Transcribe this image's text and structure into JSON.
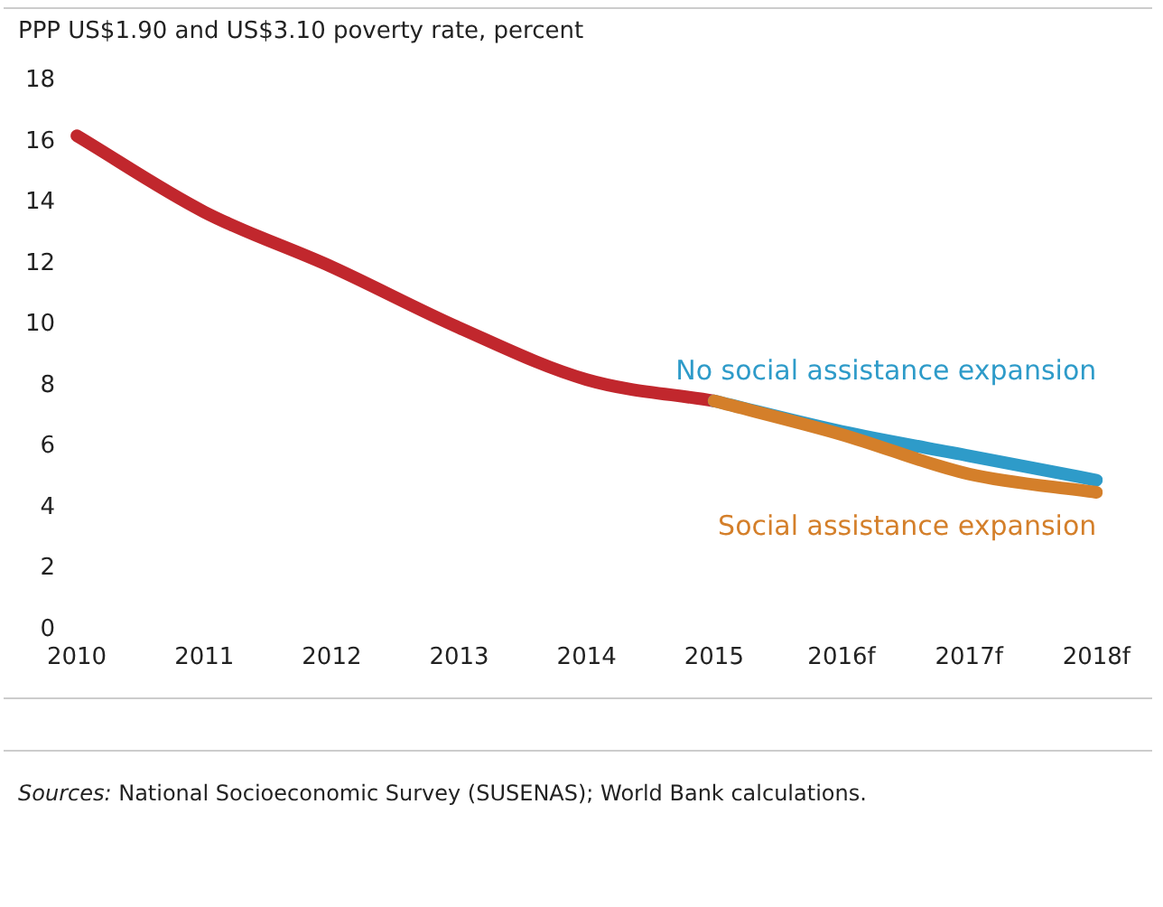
{
  "chart_data": {
    "type": "line",
    "ylabel": "PPP US$1.90 and US$3.10 poverty rate, percent",
    "categories": [
      "2010",
      "2011",
      "2012",
      "2013",
      "2014",
      "2015",
      "2016f",
      "2017f",
      "2018f"
    ],
    "series": [
      {
        "color": "#c1272d",
        "values": [
          16.2,
          13.7,
          11.9,
          9.9,
          8.2,
          7.5,
          null,
          null,
          null
        ]
      },
      {
        "name": "No social assistance expansion",
        "color": "#2e9bc9",
        "values": [
          null,
          null,
          null,
          null,
          null,
          7.5,
          6.5,
          5.7,
          4.9
        ]
      },
      {
        "name": "Social assistance expansion",
        "color": "#d47f2a",
        "values": [
          null,
          null,
          null,
          null,
          null,
          7.5,
          6.4,
          5.1,
          4.5
        ]
      }
    ],
    "ylim": [
      0,
      18
    ],
    "yticks": [
      0,
      2,
      4,
      6,
      8,
      10,
      12,
      14,
      16,
      18
    ],
    "grid": false,
    "legend": false,
    "marker": "none",
    "line_style": "solid",
    "annotations": [
      "Sources: National Socioeconomic Survey (SUSENAS); World Bank calculations."
    ]
  }
}
